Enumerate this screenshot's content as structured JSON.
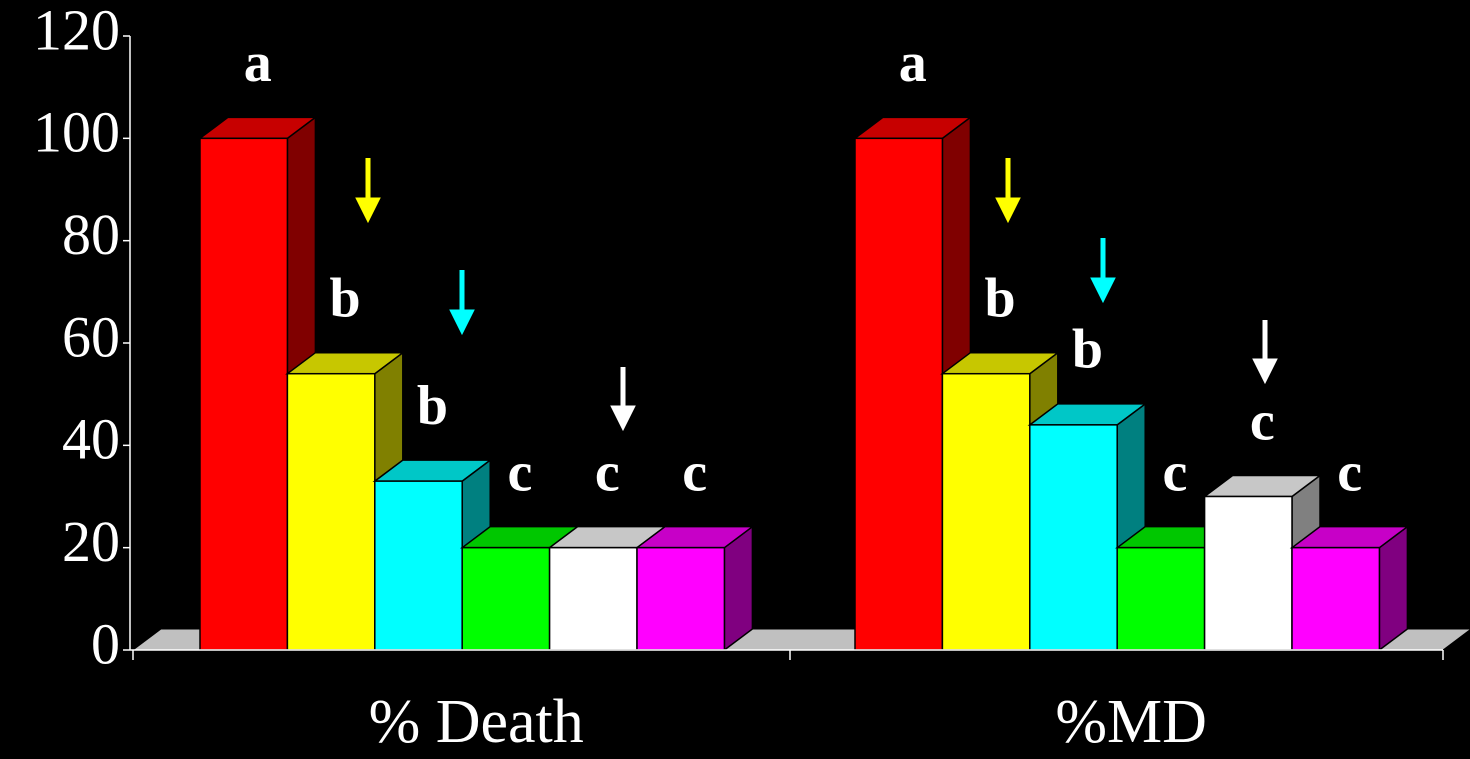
{
  "chart_data": {
    "type": "bar3d",
    "categories": [
      "% Death",
      "%MD"
    ],
    "series": [
      {
        "color": "#ff0000",
        "values": [
          100,
          100
        ],
        "annotations": [
          "a",
          "a"
        ]
      },
      {
        "color": "#ffff00",
        "values": [
          54,
          54
        ],
        "annotations": [
          "b",
          "b"
        ]
      },
      {
        "color": "#00ffff",
        "values": [
          33,
          44
        ],
        "annotations": [
          "b",
          "b"
        ]
      },
      {
        "color": "#00ff00",
        "values": [
          20,
          20
        ],
        "annotations": [
          "c",
          "c"
        ]
      },
      {
        "color": "#ffffff",
        "values": [
          20,
          30
        ],
        "annotations": [
          "c",
          "c"
        ]
      },
      {
        "color": "#ff00ff",
        "values": [
          20,
          20
        ],
        "annotations": [
          "c",
          "c"
        ]
      }
    ],
    "ylim": [
      0,
      120
    ],
    "yticks": [
      0,
      20,
      40,
      60,
      80,
      100,
      120
    ]
  }
}
